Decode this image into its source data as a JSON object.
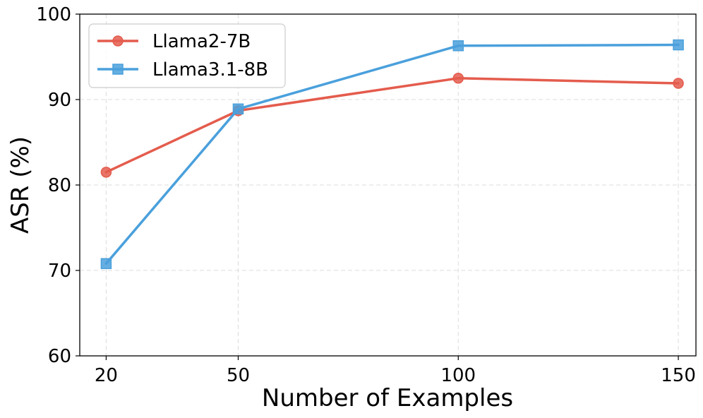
{
  "chart_data": {
    "type": "line",
    "title": "",
    "xlabel": "Number of Examples",
    "ylabel": "ASR (%)",
    "x": [
      20,
      50,
      100,
      150
    ],
    "xticks": [
      "20",
      "50",
      "100",
      "150"
    ],
    "yticks": [
      "60",
      "70",
      "80",
      "90",
      "100"
    ],
    "xlim": [
      14,
      154
    ],
    "ylim": [
      60,
      100
    ],
    "grid": true,
    "legend_position": "top-left",
    "series": [
      {
        "name": "Llama2-7B",
        "values": [
          81.5,
          88.7,
          92.5,
          91.9
        ],
        "color": "#e45c4d",
        "marker": "circle"
      },
      {
        "name": "Llama3.1-8B",
        "values": [
          70.8,
          88.9,
          96.3,
          96.4
        ],
        "color": "#4aa0dc",
        "marker": "square"
      }
    ]
  }
}
